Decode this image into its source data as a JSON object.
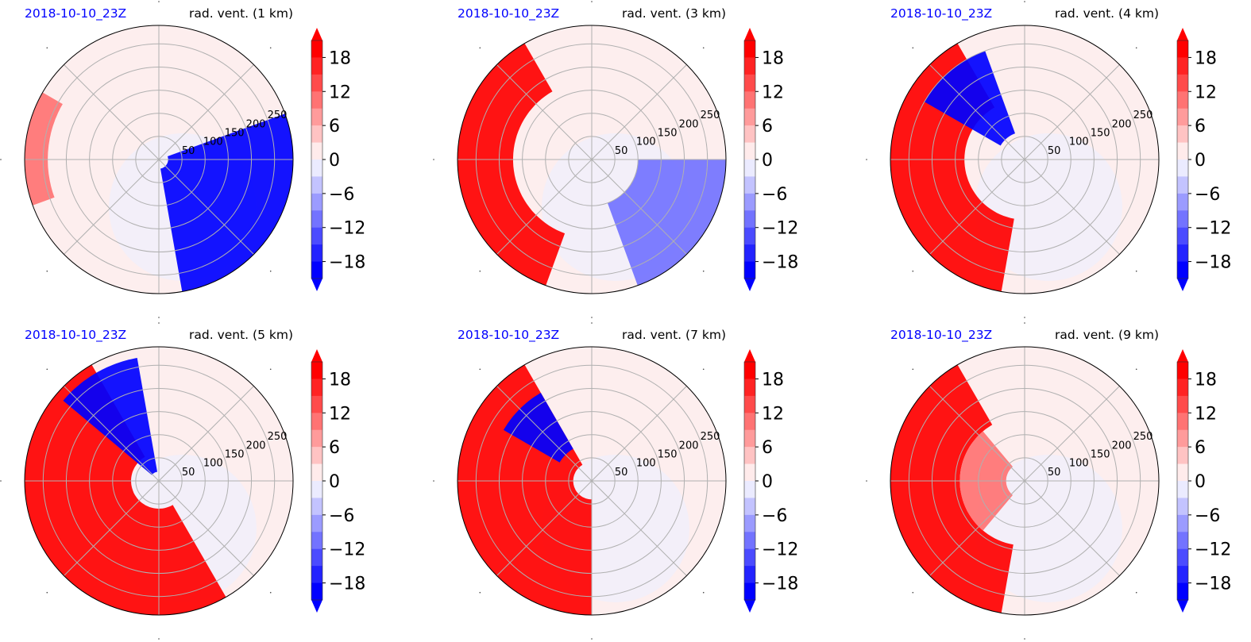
{
  "chart_data": [
    {
      "type": "heatmap",
      "subtype": "polar-contourf",
      "title_left": "2018-10-10_23Z",
      "title_right": "rad. vent. (1 km)",
      "r_ticks": [
        50,
        100,
        150,
        200,
        250
      ],
      "r_max": 290,
      "theta_grid_deg": [
        0,
        45,
        90,
        135,
        180,
        225,
        270,
        315
      ],
      "grid": true,
      "colorbar": {
        "ticks": [
          18,
          12,
          6,
          0,
          -6,
          -12,
          -18
        ],
        "vmin": -21,
        "vmax": 21,
        "extend": "both",
        "colormap": "bwr",
        "location": "right"
      },
      "regions": [
        {
          "sign": "negative",
          "theta_from_deg": -80,
          "theta_to_deg": 20,
          "r_from": 20,
          "r_to": 290,
          "magnitude": "strong"
        },
        {
          "sign": "positive",
          "theta_from_deg": 150,
          "theta_to_deg": 200,
          "r_from": 240,
          "r_to": 290,
          "magnitude": "moderate"
        }
      ]
    },
    {
      "type": "heatmap",
      "subtype": "polar-contourf",
      "title_left": "2018-10-10_23Z",
      "title_right": "rad. vent. (3 km)",
      "r_ticks": [
        50,
        100,
        150,
        200,
        250
      ],
      "r_max": 290,
      "theta_grid_deg": [
        0,
        45,
        90,
        135,
        180,
        225,
        270,
        315
      ],
      "grid": true,
      "colorbar": {
        "ticks": [
          18,
          12,
          6,
          0,
          -6,
          -12,
          -18
        ],
        "vmin": -21,
        "vmax": 21,
        "extend": "both",
        "colormap": "bwr",
        "location": "right"
      },
      "regions": [
        {
          "sign": "positive",
          "theta_from_deg": 120,
          "theta_to_deg": 250,
          "r_from": 170,
          "r_to": 290,
          "magnitude": "strong"
        },
        {
          "sign": "negative",
          "theta_from_deg": -70,
          "theta_to_deg": 0,
          "r_from": 100,
          "r_to": 290,
          "magnitude": "moderate"
        }
      ]
    },
    {
      "type": "heatmap",
      "subtype": "polar-contourf",
      "title_left": "2018-10-10_23Z",
      "title_right": "rad. vent. (4 km)",
      "r_ticks": [
        50,
        100,
        150,
        200,
        250
      ],
      "r_max": 290,
      "theta_grid_deg": [
        0,
        45,
        90,
        135,
        180,
        225,
        270,
        315
      ],
      "grid": true,
      "colorbar": {
        "ticks": [
          18,
          12,
          6,
          0,
          -6,
          -12,
          -18
        ],
        "vmin": -21,
        "vmax": 21,
        "extend": "both",
        "colormap": "bwr",
        "location": "right"
      },
      "regions": [
        {
          "sign": "positive",
          "theta_from_deg": 120,
          "theta_to_deg": 260,
          "r_from": 130,
          "r_to": 290,
          "magnitude": "strong"
        },
        {
          "sign": "negative",
          "theta_from_deg": 110,
          "theta_to_deg": 150,
          "r_from": 60,
          "r_to": 250,
          "magnitude": "strong"
        }
      ]
    },
    {
      "type": "heatmap",
      "subtype": "polar-contourf",
      "title_left": "2018-10-10_23Z",
      "title_right": "rad. vent. (5 km)",
      "r_ticks": [
        50,
        100,
        150,
        200,
        250
      ],
      "r_max": 290,
      "theta_grid_deg": [
        0,
        45,
        90,
        135,
        180,
        225,
        270,
        315
      ],
      "grid": true,
      "colorbar": {
        "ticks": [
          18,
          12,
          6,
          0,
          -6,
          -12,
          -18
        ],
        "vmin": -21,
        "vmax": 21,
        "extend": "both",
        "colormap": "bwr",
        "location": "right"
      },
      "regions": [
        {
          "sign": "positive",
          "theta_from_deg": 120,
          "theta_to_deg": 300,
          "r_from": 60,
          "r_to": 290,
          "magnitude": "strong"
        },
        {
          "sign": "negative",
          "theta_from_deg": 100,
          "theta_to_deg": 140,
          "r_from": 20,
          "r_to": 270,
          "magnitude": "strong"
        }
      ]
    },
    {
      "type": "heatmap",
      "subtype": "polar-contourf",
      "title_left": "2018-10-10_23Z",
      "title_right": "rad. vent. (7 km)",
      "r_ticks": [
        50,
        100,
        150,
        200,
        250
      ],
      "r_max": 290,
      "theta_grid_deg": [
        0,
        45,
        90,
        135,
        180,
        225,
        270,
        315
      ],
      "grid": true,
      "colorbar": {
        "ticks": [
          18,
          12,
          6,
          0,
          -6,
          -12,
          -18
        ],
        "vmin": -21,
        "vmax": 21,
        "extend": "both",
        "colormap": "bwr",
        "location": "right"
      },
      "regions": [
        {
          "sign": "positive",
          "theta_from_deg": 120,
          "theta_to_deg": 270,
          "r_from": 40,
          "r_to": 290,
          "magnitude": "strong"
        },
        {
          "sign": "negative",
          "theta_from_deg": 120,
          "theta_to_deg": 150,
          "r_from": 80,
          "r_to": 220,
          "magnitude": "strong"
        }
      ]
    },
    {
      "type": "heatmap",
      "subtype": "polar-contourf",
      "title_left": "2018-10-10_23Z",
      "title_right": "rad. vent. (9 km)",
      "r_ticks": [
        50,
        100,
        150,
        200,
        250
      ],
      "r_max": 290,
      "theta_grid_deg": [
        0,
        45,
        90,
        135,
        180,
        225,
        270,
        315
      ],
      "grid": true,
      "colorbar": {
        "ticks": [
          18,
          12,
          6,
          0,
          -6,
          -12,
          -18
        ],
        "vmin": -21,
        "vmax": 21,
        "extend": "both",
        "colormap": "bwr",
        "location": "right"
      },
      "regions": [
        {
          "sign": "positive",
          "theta_from_deg": 120,
          "theta_to_deg": 260,
          "r_from": 140,
          "r_to": 290,
          "magnitude": "strong"
        },
        {
          "sign": "positive",
          "theta_from_deg": 130,
          "theta_to_deg": 230,
          "r_from": 40,
          "r_to": 140,
          "magnitude": "moderate"
        }
      ]
    }
  ]
}
